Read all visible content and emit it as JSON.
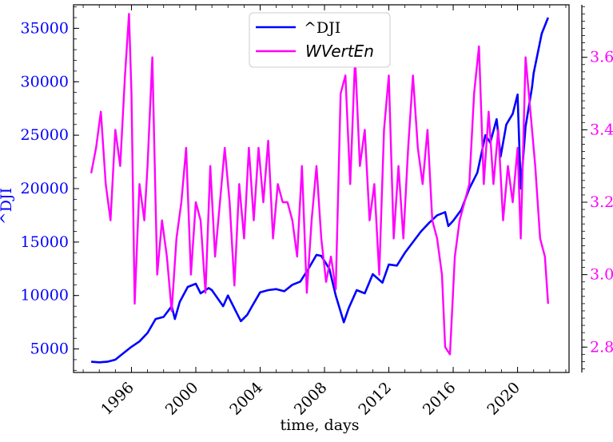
{
  "chart_data": {
    "type": "line",
    "title": "",
    "xlabel": "time, days",
    "x_ticks": [
      "1996",
      "2000",
      "2004",
      "2008",
      "2012",
      "2016",
      "2020"
    ],
    "xlim": [
      1992.4,
      2023.2
    ],
    "left_axis": {
      "label": "^DJI",
      "ylim": [
        2800,
        37200
      ],
      "ticks": [
        "5000",
        "10000",
        "15000",
        "20000",
        "25000",
        "30000",
        "35000"
      ],
      "color": "#0000ff"
    },
    "right_axis": {
      "label": "",
      "ylim": [
        2.73,
        3.745
      ],
      "ticks": [
        "2.8",
        "3.0",
        "3.2",
        "3.4",
        "3.6"
      ],
      "color": "#ff00ff"
    },
    "legend": {
      "position": "top-center"
    },
    "series": [
      {
        "name": "^DJI",
        "axis": "left",
        "color": "#0000ff",
        "x": [
          1993.5,
          1994.0,
          1994.5,
          1995.0,
          1995.5,
          1996.0,
          1996.5,
          1997.0,
          1997.5,
          1998.0,
          1998.5,
          1998.7,
          1999.0,
          1999.5,
          2000.0,
          2000.3,
          2000.8,
          2001.0,
          2001.7,
          2002.0,
          2002.5,
          2002.8,
          2003.2,
          2003.5,
          2004.0,
          2004.5,
          2005.0,
          2005.5,
          2006.0,
          2006.5,
          2007.0,
          2007.5,
          2007.8,
          2008.3,
          2008.7,
          2009.2,
          2009.5,
          2010.0,
          2010.5,
          2011.0,
          2011.6,
          2012.0,
          2012.5,
          2013.0,
          2013.5,
          2014.0,
          2014.5,
          2015.0,
          2015.5,
          2015.7,
          2016.0,
          2016.5,
          2017.0,
          2017.5,
          2018.0,
          2018.3,
          2018.7,
          2018.95,
          2019.3,
          2019.7,
          2020.0,
          2020.2,
          2020.5,
          2020.9,
          2021.0,
          2021.5,
          2021.9
        ],
        "y": [
          3800,
          3750,
          3800,
          4000,
          4600,
          5200,
          5700,
          6500,
          7800,
          8000,
          9000,
          7800,
          9400,
          10800,
          11100,
          10200,
          10700,
          10500,
          9000,
          10000,
          8500,
          7600,
          8200,
          9000,
          10300,
          10500,
          10600,
          10400,
          11000,
          11300,
          12500,
          13800,
          13700,
          12500,
          10000,
          7500,
          8800,
          10500,
          10200,
          12000,
          11200,
          12900,
          12800,
          14000,
          15000,
          16000,
          16800,
          17500,
          17800,
          16500,
          17000,
          18000,
          20000,
          21500,
          25000,
          24300,
          26500,
          23000,
          26000,
          27000,
          28800,
          20000,
          25800,
          29500,
          30800,
          34500,
          36000
        ]
      },
      {
        "name": "WVertEn",
        "axis": "right",
        "color": "#ff00ff",
        "x": [
          1993.5,
          1993.8,
          1994.1,
          1994.4,
          1994.7,
          1995.0,
          1995.3,
          1995.6,
          1995.85,
          1996.0,
          1996.2,
          1996.5,
          1996.8,
          1997.0,
          1997.3,
          1997.6,
          1997.9,
          1998.2,
          1998.5,
          1998.8,
          1999.1,
          1999.4,
          1999.7,
          2000.0,
          2000.3,
          2000.6,
          2000.9,
          2001.2,
          2001.5,
          2001.8,
          2002.1,
          2002.4,
          2002.7,
          2003.0,
          2003.3,
          2003.6,
          2003.9,
          2004.2,
          2004.5,
          2004.8,
          2005.1,
          2005.4,
          2005.7,
          2006.0,
          2006.3,
          2006.6,
          2006.9,
          2007.2,
          2007.5,
          2007.8,
          2008.1,
          2008.4,
          2008.7,
          2009.0,
          2009.3,
          2009.6,
          2009.9,
          2010.2,
          2010.5,
          2010.8,
          2011.1,
          2011.4,
          2011.7,
          2012.0,
          2012.3,
          2012.6,
          2012.9,
          2013.2,
          2013.5,
          2013.8,
          2014.1,
          2014.4,
          2014.7,
          2015.0,
          2015.3,
          2015.5,
          2015.8,
          2016.1,
          2016.4,
          2016.7,
          2017.0,
          2017.3,
          2017.6,
          2017.9,
          2018.2,
          2018.5,
          2018.8,
          2019.1,
          2019.4,
          2019.7,
          2020.0,
          2020.2,
          2020.5,
          2020.8,
          2021.1,
          2021.4,
          2021.7,
          2021.9
        ],
        "y": [
          3.28,
          3.35,
          3.45,
          3.25,
          3.15,
          3.4,
          3.3,
          3.55,
          3.72,
          3.5,
          2.92,
          3.25,
          3.15,
          3.3,
          3.6,
          3.0,
          3.15,
          3.05,
          2.9,
          3.1,
          3.2,
          3.35,
          3.0,
          3.2,
          3.15,
          2.95,
          3.3,
          3.05,
          3.2,
          3.35,
          3.2,
          2.97,
          3.25,
          3.1,
          3.35,
          3.15,
          3.35,
          3.2,
          3.37,
          3.1,
          3.25,
          3.2,
          3.2,
          3.15,
          3.05,
          3.3,
          2.95,
          3.15,
          3.3,
          3.1,
          2.98,
          3.05,
          2.96,
          3.5,
          3.55,
          3.25,
          3.6,
          3.3,
          3.4,
          3.15,
          3.25,
          3.0,
          3.4,
          3.55,
          3.1,
          3.3,
          3.1,
          3.35,
          3.55,
          3.35,
          3.25,
          3.4,
          3.15,
          3.1,
          3.0,
          2.8,
          2.78,
          3.05,
          3.15,
          3.2,
          3.25,
          3.5,
          3.63,
          3.25,
          3.45,
          3.25,
          3.4,
          3.15,
          3.3,
          3.2,
          3.35,
          3.1,
          3.6,
          3.45,
          3.3,
          3.1,
          3.05,
          2.92
        ]
      }
    ]
  }
}
